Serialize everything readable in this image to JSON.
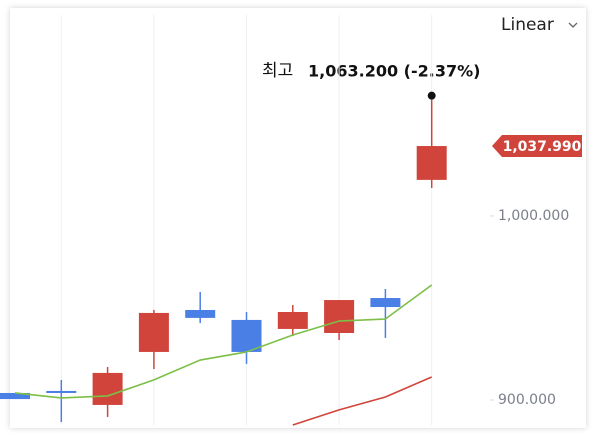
{
  "chart_data": {
    "type": "candlestick",
    "scale_menu": "Linear",
    "annotation": {
      "label": "최고",
      "text": "1,063.200 (-2.37%)"
    },
    "last_price": {
      "value": 1037.99,
      "label": "1,037.990",
      "color": "#d0443b"
    },
    "categories": [
      null,
      null,
      null,
      null,
      null,
      null,
      null,
      null,
      null,
      null
    ],
    "open": [
      903.8,
      904.9,
      897.3,
      926.1,
      948.9,
      943.5,
      938.6,
      936.4,
      955.4,
      1019.6
    ],
    "close": [
      900.5,
      903.8,
      914.7,
      947.3,
      944.6,
      926.1,
      947.8,
      954.3,
      950.5,
      1037.99
    ],
    "high": [
      903.8,
      910.9,
      917.9,
      948.9,
      958.7,
      947.8,
      951.6,
      954.3,
      960.3,
      1063.2
    ],
    "low": [
      900.5,
      888.0,
      890.8,
      916.8,
      941.8,
      919.6,
      934.8,
      932.6,
      933.7,
      1015.2
    ],
    "up_color": "#d0443b",
    "down_color": "#4a7fe6",
    "series": [
      {
        "color": "#7dbf46",
        "values": [
          903.8,
          901.1,
          902.2,
          910.9,
          921.7,
          926.1,
          935.3,
          942.9,
          944.0,
          962.5
        ]
      },
      {
        "color": "#d0443b",
        "values": [
          null,
          null,
          null,
          null,
          null,
          null,
          886.4,
          894.6,
          901.6,
          912.5
        ]
      }
    ],
    "ylim": [
      886.4,
      1109.2
    ],
    "yticks": [
      {
        "value": 900,
        "label": "900.000"
      },
      {
        "value": 1000,
        "label": "1,000.000"
      }
    ],
    "grid": true
  }
}
